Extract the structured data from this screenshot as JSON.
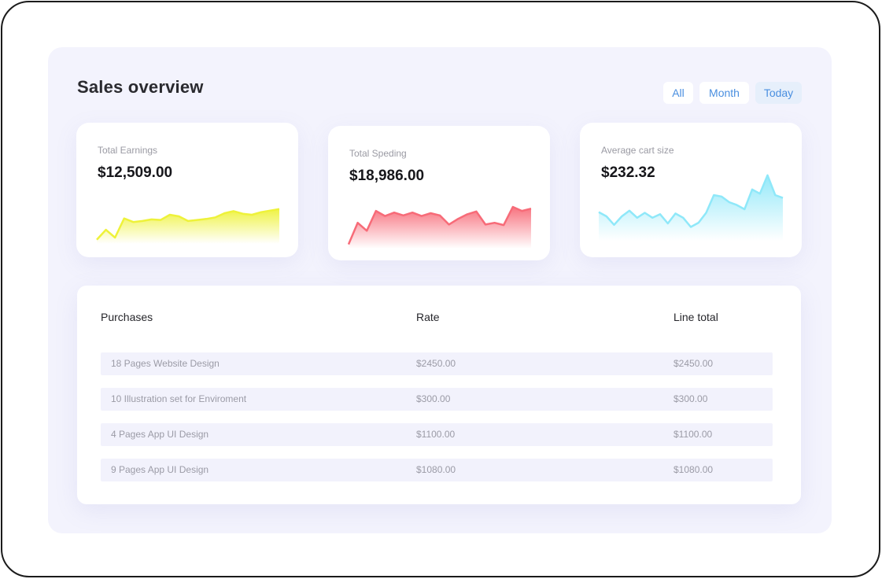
{
  "title": "Sales overview",
  "filters": [
    "All",
    "Month",
    "Today"
  ],
  "active_filter": "Today",
  "accent_color": "#4a8fe0",
  "cards": [
    {
      "label": "Total Earnings",
      "value": "$12,509.00",
      "color": "#eef23a",
      "trend": [
        2,
        21,
        6,
        43,
        36,
        38,
        41,
        40,
        50,
        47,
        38,
        40,
        42,
        45,
        53,
        57,
        52,
        50,
        55,
        58,
        61
      ]
    },
    {
      "label": "Total Speding",
      "value": "$18,986.00",
      "color": "#f76b78",
      "trend": [
        2,
        40,
        26,
        61,
        52,
        58,
        53,
        58,
        52,
        57,
        53,
        37,
        47,
        55,
        60,
        37,
        40,
        36,
        68,
        61,
        65
      ]
    },
    {
      "label": "Average cart size",
      "value": "$232.32",
      "color": "#8fe8f9",
      "trend": [
        36,
        30,
        18,
        30,
        38,
        28,
        35,
        28,
        33,
        20,
        34,
        28,
        15,
        21,
        35,
        60,
        58,
        50,
        46,
        40,
        68,
        62,
        88,
        60,
        56
      ]
    }
  ],
  "table": {
    "headers": [
      "Purchases",
      "Rate",
      "Line total"
    ],
    "rows": [
      [
        "18 Pages Website Design",
        "$2450.00",
        "$2450.00"
      ],
      [
        "10 Illustration set for Enviroment",
        "$300.00",
        "$300.00"
      ],
      [
        "4 Pages App UI Design",
        "$1100.00",
        "$1100.00"
      ],
      [
        "9 Pages App UI Design",
        "$1080.00",
        "$1080.00"
      ]
    ]
  }
}
